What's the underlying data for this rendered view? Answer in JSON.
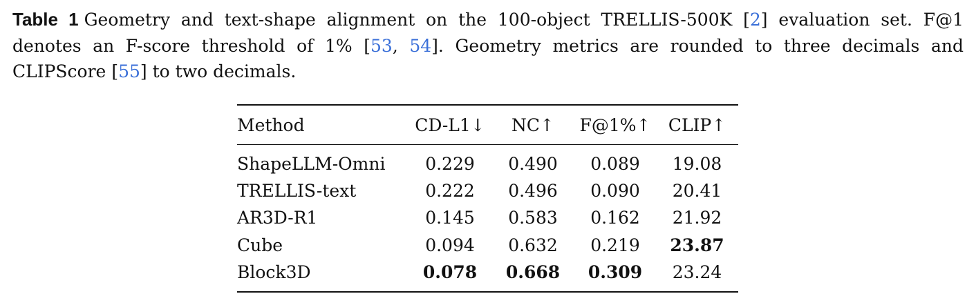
{
  "caption": {
    "label": "Table 1",
    "text_1": "Geometry and text-shape alignment on the 100-object TRELLIS-500K ",
    "cite_1": "2",
    "text_2": " evaluation set. F@1 denotes an F-score threshold of 1% [",
    "cite_2": "53",
    "text_3": ", ",
    "cite_3": "54",
    "text_4": "].  Geometry metrics are rounded to three decimals and CLIPScore ",
    "cite_4": "55",
    "text_5": " to two decimals."
  },
  "table": {
    "headers": {
      "method": "Method",
      "cd_l1": "CD-L1↓",
      "nc": "NC↑",
      "f1": "F@1%↑",
      "clip": "CLIP↑"
    },
    "rows": [
      {
        "method": "ShapeLLM-Omni",
        "cd_l1": "0.229",
        "nc": "0.490",
        "f1": "0.089",
        "clip": "19.08"
      },
      {
        "method": "TRELLIS-text",
        "cd_l1": "0.222",
        "nc": "0.496",
        "f1": "0.090",
        "clip": "20.41"
      },
      {
        "method": "AR3D-R1",
        "cd_l1": "0.145",
        "nc": "0.583",
        "f1": "0.162",
        "clip": "21.92"
      },
      {
        "method": "Cube",
        "cd_l1": "0.094",
        "nc": "0.632",
        "f1": "0.219",
        "clip": "23.87"
      },
      {
        "method": "Block3D",
        "cd_l1": "0.078",
        "nc": "0.668",
        "f1": "0.309",
        "clip": "23.24"
      }
    ],
    "bold_cells": [
      "3.clip",
      "4.cd_l1",
      "4.nc",
      "4.f1"
    ]
  },
  "colors": {
    "text": "#111111",
    "citation_link": "#3a6fd8"
  }
}
